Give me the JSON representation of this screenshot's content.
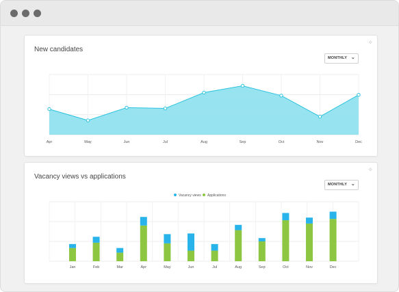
{
  "window": {
    "controls": [
      "close",
      "minimize",
      "maximize"
    ]
  },
  "candidates_card": {
    "title": "New candidates",
    "period_select": "MONTHLY",
    "chart_data": {
      "type": "area",
      "categories": [
        "Apr",
        "May",
        "Jun",
        "Jul",
        "Aug",
        "Sep",
        "Oct",
        "Nov",
        "Dec"
      ],
      "values": [
        3.4,
        1.9,
        3.6,
        3.5,
        5.6,
        6.5,
        5.2,
        2.4,
        5.3
      ],
      "ylim": [
        0,
        8
      ],
      "grid": true,
      "fill_color": "#92e1ef",
      "line_color": "#29c3df"
    }
  },
  "vacancy_card": {
    "title": "Vacancy views vs applications",
    "period_select": "MONTHLY",
    "legend": [
      "Vacancy views",
      "Applications"
    ],
    "chart_data": {
      "type": "bar",
      "stacked": true,
      "categories": [
        "Jan",
        "Feb",
        "Mar",
        "Apr",
        "May",
        "Jun",
        "Jul",
        "Aug",
        "Sep",
        "Oct",
        "Nov",
        "Dec"
      ],
      "series": [
        {
          "name": "Applications",
          "values": [
            20,
            28,
            13,
            54,
            27,
            16,
            16,
            47,
            30,
            62,
            57,
            64
          ],
          "color": "#8dc641"
        },
        {
          "name": "Vacancy views",
          "values": [
            6,
            9,
            7,
            13,
            14,
            26,
            10,
            8,
            5,
            11,
            9,
            11
          ],
          "color": "#28b4ea"
        }
      ],
      "ylim": [
        0,
        90
      ],
      "grid": true,
      "legend_position": "top-center"
    }
  }
}
